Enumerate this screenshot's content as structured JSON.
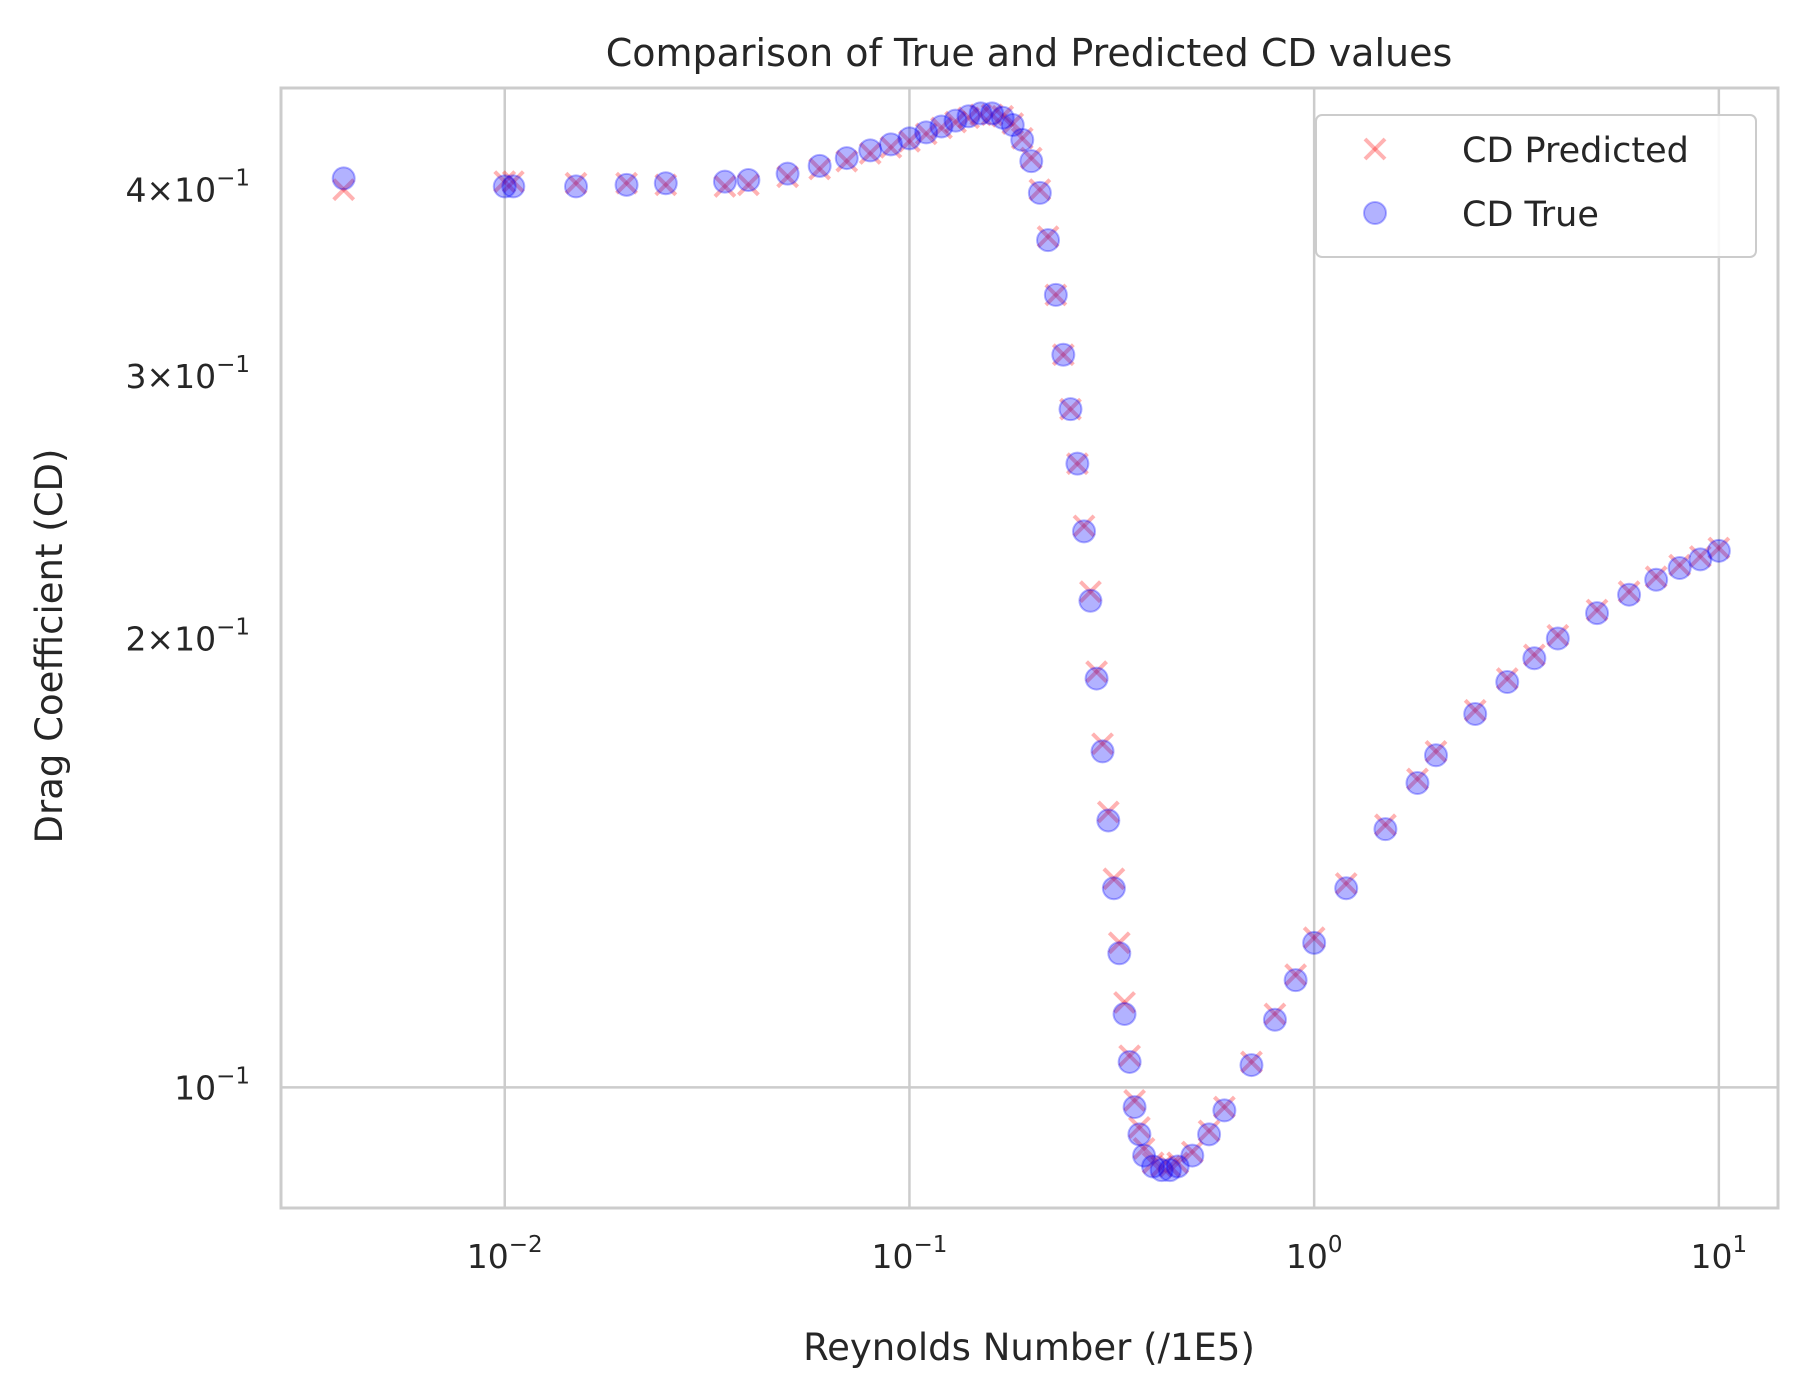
{
  "chart_data": {
    "type": "scatter",
    "title": "Comparison of True and Predicted CD values",
    "xlabel": "Reynolds Number (/1E5)",
    "ylabel": "Drag Coefficient (CD)",
    "xscale": "log",
    "yscale": "log",
    "xlim": [
      0.0028,
      14
    ],
    "ylim": [
      0.083,
      0.468
    ],
    "grid": true,
    "legend_position": "top-right",
    "x_ticks": [
      {
        "value": 0.01,
        "mantissa": "",
        "base": "10",
        "exp": "−2"
      },
      {
        "value": 0.1,
        "mantissa": "",
        "base": "10",
        "exp": "−1"
      },
      {
        "value": 1,
        "mantissa": "",
        "base": "10",
        "exp": "0"
      },
      {
        "value": 10,
        "mantissa": "",
        "base": "10",
        "exp": "1"
      }
    ],
    "y_ticks": [
      {
        "value": 0.1,
        "mantissa": "",
        "base": "10",
        "exp": "−1"
      },
      {
        "value": 0.2,
        "mantissa": "2×",
        "base": "10",
        "exp": "−1"
      },
      {
        "value": 0.3,
        "mantissa": "3×",
        "base": "10",
        "exp": "−1"
      },
      {
        "value": 0.4,
        "mantissa": "4×",
        "base": "10",
        "exp": "−1"
      }
    ],
    "series": [
      {
        "name": "CD Predicted",
        "marker": "x",
        "color": "#ff0000",
        "opacity": 0.3,
        "points": [
          [
            0.004,
            0.4
          ],
          [
            0.01,
            0.405
          ],
          [
            0.0105,
            0.405
          ],
          [
            0.015,
            0.404
          ],
          [
            0.02,
            0.404
          ],
          [
            0.025,
            0.403
          ],
          [
            0.035,
            0.402
          ],
          [
            0.04,
            0.403
          ],
          [
            0.05,
            0.408
          ],
          [
            0.06,
            0.413
          ],
          [
            0.07,
            0.418
          ],
          [
            0.08,
            0.423
          ],
          [
            0.09,
            0.427
          ],
          [
            0.1,
            0.431
          ],
          [
            0.11,
            0.436
          ],
          [
            0.12,
            0.44
          ],
          [
            0.13,
            0.444
          ],
          [
            0.14,
            0.447
          ],
          [
            0.15,
            0.449
          ],
          [
            0.16,
            0.449
          ],
          [
            0.17,
            0.448
          ],
          [
            0.18,
            0.443
          ],
          [
            0.19,
            0.433
          ],
          [
            0.2,
            0.42
          ],
          [
            0.21,
            0.4
          ],
          [
            0.22,
            0.372
          ],
          [
            0.23,
            0.34
          ],
          [
            0.24,
            0.31
          ],
          [
            0.25,
            0.285
          ],
          [
            0.26,
            0.262
          ],
          [
            0.27,
            0.238
          ],
          [
            0.28,
            0.215
          ],
          [
            0.29,
            0.19
          ],
          [
            0.3,
            0.17
          ],
          [
            0.31,
            0.153
          ],
          [
            0.32,
            0.138
          ],
          [
            0.33,
            0.125
          ],
          [
            0.34,
            0.114
          ],
          [
            0.35,
            0.105
          ],
          [
            0.36,
            0.098
          ],
          [
            0.37,
            0.094
          ],
          [
            0.38,
            0.091
          ],
          [
            0.4,
            0.089
          ],
          [
            0.42,
            0.0885
          ],
          [
            0.44,
            0.0885
          ],
          [
            0.46,
            0.089
          ],
          [
            0.5,
            0.0905
          ],
          [
            0.55,
            0.0935
          ],
          [
            0.6,
            0.097
          ],
          [
            0.7,
            0.104
          ],
          [
            0.8,
            0.112
          ],
          [
            0.9,
            0.119
          ],
          [
            1.0,
            0.126
          ],
          [
            1.2,
            0.137
          ],
          [
            1.5,
            0.15
          ],
          [
            1.8,
            0.161
          ],
          [
            2.0,
            0.168
          ],
          [
            2.5,
            0.179
          ],
          [
            3.0,
            0.188
          ],
          [
            3.5,
            0.195
          ],
          [
            4.0,
            0.201
          ],
          [
            5.0,
            0.209
          ],
          [
            6.0,
            0.215
          ],
          [
            7.0,
            0.22
          ],
          [
            8.0,
            0.224
          ],
          [
            9.0,
            0.227
          ],
          [
            10.0,
            0.23
          ]
        ]
      },
      {
        "name": "CD True",
        "marker": "o",
        "color": "#0000ff",
        "opacity": 0.3,
        "points": [
          [
            0.004,
            0.407
          ],
          [
            0.01,
            0.402
          ],
          [
            0.0105,
            0.402
          ],
          [
            0.015,
            0.402
          ],
          [
            0.02,
            0.403
          ],
          [
            0.025,
            0.404
          ],
          [
            0.035,
            0.405
          ],
          [
            0.04,
            0.406
          ],
          [
            0.05,
            0.41
          ],
          [
            0.06,
            0.415
          ],
          [
            0.07,
            0.42
          ],
          [
            0.08,
            0.425
          ],
          [
            0.09,
            0.429
          ],
          [
            0.1,
            0.433
          ],
          [
            0.11,
            0.437
          ],
          [
            0.12,
            0.441
          ],
          [
            0.13,
            0.445
          ],
          [
            0.14,
            0.448
          ],
          [
            0.15,
            0.45
          ],
          [
            0.16,
            0.45
          ],
          [
            0.17,
            0.447
          ],
          [
            0.18,
            0.442
          ],
          [
            0.19,
            0.432
          ],
          [
            0.2,
            0.418
          ],
          [
            0.21,
            0.398
          ],
          [
            0.22,
            0.37
          ],
          [
            0.23,
            0.34
          ],
          [
            0.24,
            0.31
          ],
          [
            0.25,
            0.285
          ],
          [
            0.26,
            0.262
          ],
          [
            0.27,
            0.236
          ],
          [
            0.28,
            0.212
          ],
          [
            0.29,
            0.188
          ],
          [
            0.3,
            0.168
          ],
          [
            0.31,
            0.151
          ],
          [
            0.32,
            0.136
          ],
          [
            0.33,
            0.123
          ],
          [
            0.34,
            0.112
          ],
          [
            0.35,
            0.104
          ],
          [
            0.36,
            0.097
          ],
          [
            0.37,
            0.093
          ],
          [
            0.38,
            0.09
          ],
          [
            0.4,
            0.0885
          ],
          [
            0.42,
            0.088
          ],
          [
            0.44,
            0.088
          ],
          [
            0.46,
            0.0885
          ],
          [
            0.5,
            0.09
          ],
          [
            0.55,
            0.093
          ],
          [
            0.6,
            0.0965
          ],
          [
            0.7,
            0.1035
          ],
          [
            0.8,
            0.111
          ],
          [
            0.9,
            0.118
          ],
          [
            1.0,
            0.125
          ],
          [
            1.2,
            0.136
          ],
          [
            1.5,
            0.149
          ],
          [
            1.8,
            0.16
          ],
          [
            2.0,
            0.167
          ],
          [
            2.5,
            0.178
          ],
          [
            3.0,
            0.187
          ],
          [
            3.5,
            0.194
          ],
          [
            4.0,
            0.2
          ],
          [
            5.0,
            0.208
          ],
          [
            6.0,
            0.214
          ],
          [
            7.0,
            0.219
          ],
          [
            8.0,
            0.223
          ],
          [
            9.0,
            0.226
          ],
          [
            10.0,
            0.229
          ]
        ]
      }
    ]
  }
}
